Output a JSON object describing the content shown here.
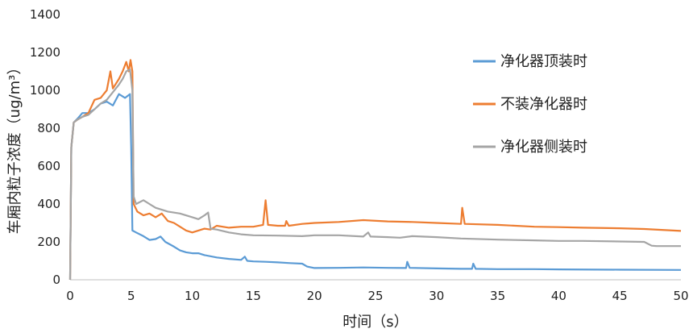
{
  "chart_data": {
    "type": "line",
    "title": "",
    "xlabel": "时间（s）",
    "ylabel": "车厢内粒子浓度（ug/m³）",
    "xlim": [
      0,
      50
    ],
    "ylim": [
      0,
      1400
    ],
    "x_ticks": [
      "0",
      "5",
      "10",
      "15",
      "20",
      "25",
      "30",
      "35",
      "40",
      "45",
      "50"
    ],
    "y_ticks": [
      "0",
      "200",
      "400",
      "600",
      "800",
      "1000",
      "1200",
      "1400"
    ],
    "grid": false,
    "legend": "right",
    "series": [
      {
        "name": "净化器顶装时",
        "color": "#5B9BD5",
        "points": [
          [
            0,
            0
          ],
          [
            0.1,
            700
          ],
          [
            0.3,
            830
          ],
          [
            0.6,
            850
          ],
          [
            1,
            880
          ],
          [
            1.5,
            880
          ],
          [
            2,
            900
          ],
          [
            2.5,
            930
          ],
          [
            3,
            940
          ],
          [
            3.5,
            920
          ],
          [
            4,
            980
          ],
          [
            4.5,
            960
          ],
          [
            4.9,
            980
          ],
          [
            5.0,
            700
          ],
          [
            5.1,
            260
          ],
          [
            5.4,
            250
          ],
          [
            6,
            230
          ],
          [
            6.5,
            210
          ],
          [
            7,
            215
          ],
          [
            7.4,
            228
          ],
          [
            7.8,
            200
          ],
          [
            8.5,
            175
          ],
          [
            9,
            155
          ],
          [
            9.5,
            145
          ],
          [
            10,
            140
          ],
          [
            10.5,
            140
          ],
          [
            11,
            130
          ],
          [
            12,
            118
          ],
          [
            13,
            110
          ],
          [
            14,
            105
          ],
          [
            14.3,
            122
          ],
          [
            14.5,
            100
          ],
          [
            15,
            97
          ],
          [
            16,
            95
          ],
          [
            17,
            92
          ],
          [
            18,
            88
          ],
          [
            19,
            85
          ],
          [
            19.4,
            70
          ],
          [
            20,
            62
          ],
          [
            22,
            63
          ],
          [
            24,
            65
          ],
          [
            26,
            63
          ],
          [
            27.5,
            62
          ],
          [
            27.6,
            95
          ],
          [
            27.8,
            63
          ],
          [
            30,
            60
          ],
          [
            32,
            58
          ],
          [
            32.9,
            58
          ],
          [
            33,
            85
          ],
          [
            33.2,
            58
          ],
          [
            35,
            56
          ],
          [
            38,
            56
          ],
          [
            40,
            55
          ],
          [
            45,
            53
          ],
          [
            50,
            52
          ]
        ]
      },
      {
        "name": "不装净化器时",
        "color": "#ED7D31",
        "points": [
          [
            0,
            0
          ],
          [
            0.1,
            700
          ],
          [
            0.3,
            830
          ],
          [
            0.6,
            845
          ],
          [
            1,
            860
          ],
          [
            1.5,
            880
          ],
          [
            2,
            950
          ],
          [
            2.5,
            960
          ],
          [
            3,
            1000
          ],
          [
            3.3,
            1100
          ],
          [
            3.5,
            1010
          ],
          [
            4,
            1060
          ],
          [
            4.3,
            1100
          ],
          [
            4.6,
            1150
          ],
          [
            4.8,
            1100
          ],
          [
            4.95,
            1160
          ],
          [
            5.1,
            1100
          ],
          [
            5.2,
            400
          ],
          [
            5.5,
            360
          ],
          [
            6,
            340
          ],
          [
            6.5,
            350
          ],
          [
            7,
            330
          ],
          [
            7.5,
            350
          ],
          [
            8,
            310
          ],
          [
            8.5,
            300
          ],
          [
            9,
            280
          ],
          [
            9.5,
            260
          ],
          [
            10,
            250
          ],
          [
            10.5,
            260
          ],
          [
            11,
            270
          ],
          [
            11.5,
            265
          ],
          [
            12,
            285
          ],
          [
            13,
            275
          ],
          [
            14,
            280
          ],
          [
            15,
            280
          ],
          [
            15.8,
            290
          ],
          [
            16,
            420
          ],
          [
            16.2,
            290
          ],
          [
            17,
            285
          ],
          [
            17.6,
            285
          ],
          [
            17.7,
            310
          ],
          [
            17.9,
            285
          ],
          [
            19,
            295
          ],
          [
            20,
            300
          ],
          [
            22,
            305
          ],
          [
            24,
            315
          ],
          [
            26,
            308
          ],
          [
            28,
            305
          ],
          [
            30,
            300
          ],
          [
            32,
            295
          ],
          [
            32.1,
            380
          ],
          [
            32.3,
            295
          ],
          [
            35,
            290
          ],
          [
            38,
            280
          ],
          [
            40,
            278
          ],
          [
            42,
            275
          ],
          [
            45,
            272
          ],
          [
            47,
            268
          ],
          [
            50,
            258
          ]
        ]
      },
      {
        "name": "净化器侧装时",
        "color": "#A5A5A5",
        "points": [
          [
            0,
            0
          ],
          [
            0.1,
            700
          ],
          [
            0.3,
            830
          ],
          [
            0.6,
            845
          ],
          [
            1,
            860
          ],
          [
            1.5,
            870
          ],
          [
            2,
            900
          ],
          [
            2.5,
            930
          ],
          [
            3,
            950
          ],
          [
            3.5,
            990
          ],
          [
            4,
            1030
          ],
          [
            4.3,
            1060
          ],
          [
            4.6,
            1100
          ],
          [
            4.9,
            1110
          ],
          [
            5.1,
            1000
          ],
          [
            5.2,
            440
          ],
          [
            5.4,
            400
          ],
          [
            6,
            420
          ],
          [
            6.5,
            400
          ],
          [
            7,
            380
          ],
          [
            7.5,
            370
          ],
          [
            8,
            360
          ],
          [
            9,
            350
          ],
          [
            10,
            330
          ],
          [
            10.5,
            320
          ],
          [
            11,
            340
          ],
          [
            11.3,
            355
          ],
          [
            11.5,
            270
          ],
          [
            12,
            265
          ],
          [
            13,
            250
          ],
          [
            14,
            240
          ],
          [
            15,
            235
          ],
          [
            17,
            233
          ],
          [
            19,
            230
          ],
          [
            20,
            235
          ],
          [
            22,
            235
          ],
          [
            24,
            228
          ],
          [
            24.4,
            250
          ],
          [
            24.6,
            228
          ],
          [
            26,
            225
          ],
          [
            27,
            222
          ],
          [
            28,
            230
          ],
          [
            30,
            225
          ],
          [
            32,
            218
          ],
          [
            35,
            212
          ],
          [
            38,
            208
          ],
          [
            40,
            205
          ],
          [
            42,
            205
          ],
          [
            45,
            202
          ],
          [
            47,
            200
          ],
          [
            47.6,
            180
          ],
          [
            48,
            178
          ],
          [
            50,
            178
          ]
        ]
      }
    ]
  }
}
